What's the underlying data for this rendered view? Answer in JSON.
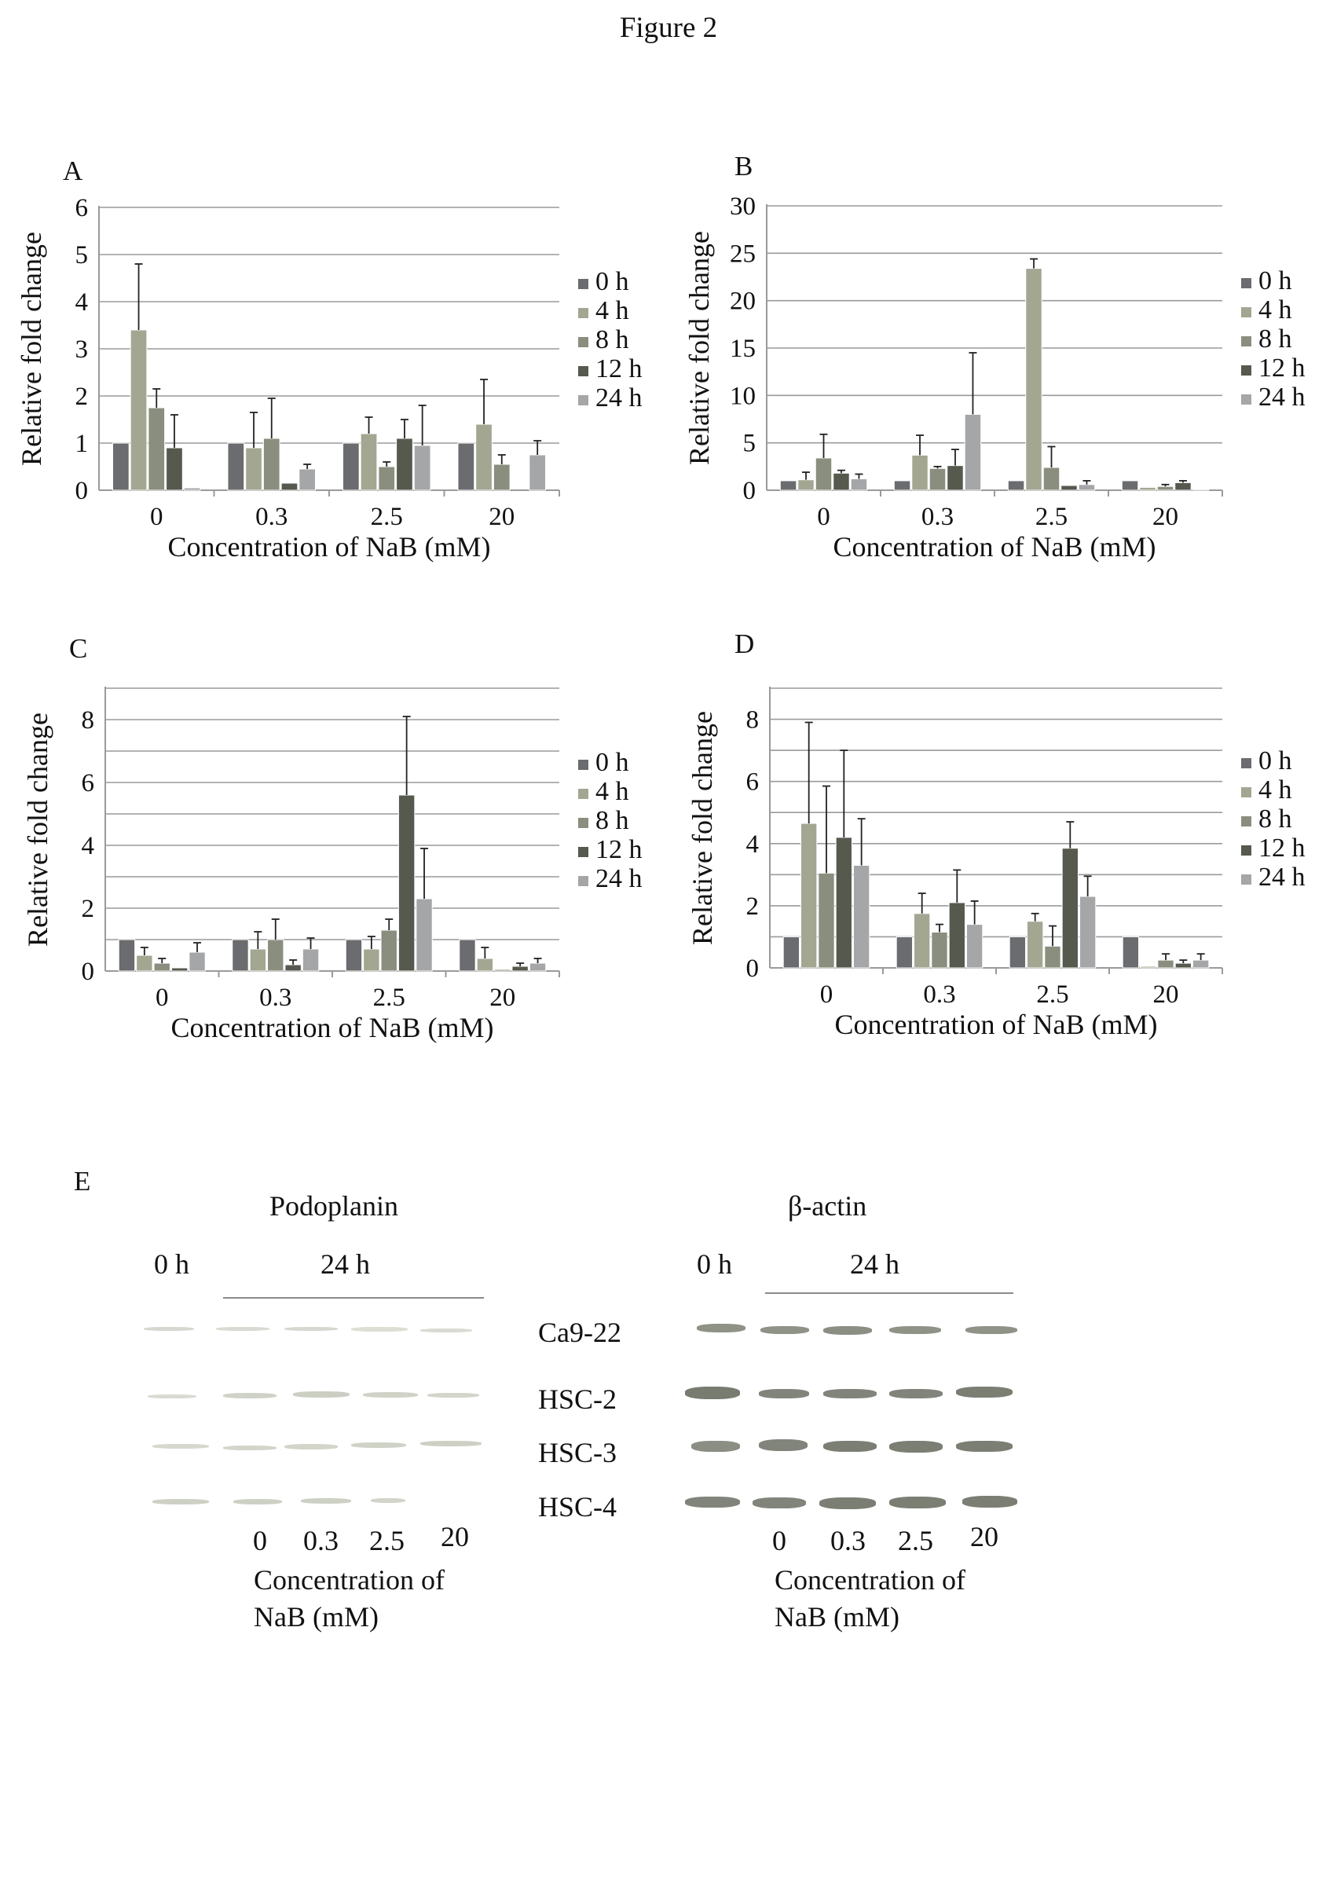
{
  "figure_title": "Figure 2",
  "colors": {
    "0 h": "#6b6c6f",
    "4 h": "#a3a792",
    "8 h": "#8a8e7e",
    "12 h": "#55594e",
    "24 h": "#a5a6a8",
    "grid": "#9a9a9a",
    "axis": "#9a9a9a"
  },
  "chart_data": [
    {
      "panel": "A",
      "type": "bar",
      "categories": [
        "0",
        "0.3",
        "2.5",
        "20"
      ],
      "xlabel": "Concentration of NaB (mM)",
      "ylabel": "Relative fold change",
      "ylim": [
        0,
        6
      ],
      "yticks": [
        "0",
        "1",
        "2",
        "3",
        "4",
        "5",
        "6"
      ],
      "grid": true,
      "legend_position": "right",
      "series": [
        {
          "name": "0 h",
          "values": [
            1.0,
            1.0,
            1.0,
            1.0
          ],
          "errors": [
            0,
            0,
            0,
            0
          ]
        },
        {
          "name": "4 h",
          "values": [
            3.4,
            0.9,
            1.2,
            1.4
          ],
          "errors": [
            1.4,
            0.75,
            0.35,
            0.95
          ]
        },
        {
          "name": "8 h",
          "values": [
            1.75,
            1.1,
            0.5,
            0.55
          ],
          "errors": [
            0.4,
            0.85,
            0.1,
            0.2
          ]
        },
        {
          "name": "12 h",
          "values": [
            0.9,
            0.15,
            1.1,
            0.0
          ],
          "errors": [
            0.7,
            0,
            0.4,
            0
          ]
        },
        {
          "name": "24 h",
          "values": [
            0.05,
            0.45,
            0.95,
            0.75
          ],
          "errors": [
            0,
            0.1,
            0.85,
            0.3
          ]
        }
      ]
    },
    {
      "panel": "B",
      "type": "bar",
      "categories": [
        "0",
        "0.3",
        "2.5",
        "20"
      ],
      "xlabel": "Concentration of NaB (mM)",
      "ylabel": "Relative fold change",
      "ylim": [
        0,
        30
      ],
      "yticks": [
        "0",
        "5",
        "10",
        "15",
        "20",
        "25",
        "30"
      ],
      "grid": true,
      "legend_position": "right",
      "series": [
        {
          "name": "0 h",
          "values": [
            1.0,
            1.0,
            1.0,
            1.0
          ],
          "errors": [
            0,
            0,
            0,
            0
          ]
        },
        {
          "name": "4 h",
          "values": [
            1.1,
            3.7,
            23.4,
            0.3
          ],
          "errors": [
            0.8,
            2.1,
            1.0,
            0
          ]
        },
        {
          "name": "8 h",
          "values": [
            3.4,
            2.3,
            2.4,
            0.4
          ],
          "errors": [
            2.5,
            0.2,
            2.2,
            0.2
          ]
        },
        {
          "name": "12 h",
          "values": [
            1.8,
            2.6,
            0.5,
            0.8
          ],
          "errors": [
            0.3,
            1.7,
            0,
            0.2
          ]
        },
        {
          "name": "24 h",
          "values": [
            1.2,
            8.0,
            0.6,
            0.1
          ],
          "errors": [
            0.5,
            6.5,
            0.4,
            0
          ]
        }
      ]
    },
    {
      "panel": "C",
      "type": "bar",
      "categories": [
        "0",
        "0.3",
        "2.5",
        "20"
      ],
      "xlabel": "Concentration of NaB (mM)",
      "ylabel": "Relative fold change",
      "ylim": [
        0,
        9
      ],
      "yticks": [
        "0",
        "2",
        "4",
        "6",
        "8"
      ],
      "grid": true,
      "legend_position": "right",
      "series": [
        {
          "name": "0 h",
          "values": [
            1.0,
            1.0,
            1.0,
            1.0
          ],
          "errors": [
            0,
            0,
            0,
            0
          ]
        },
        {
          "name": "4 h",
          "values": [
            0.5,
            0.7,
            0.7,
            0.4
          ],
          "errors": [
            0.25,
            0.55,
            0.4,
            0.35
          ]
        },
        {
          "name": "8 h",
          "values": [
            0.25,
            1.0,
            1.3,
            0.05
          ],
          "errors": [
            0.15,
            0.65,
            0.35,
            0
          ]
        },
        {
          "name": "12 h",
          "values": [
            0.1,
            0.2,
            5.6,
            0.15
          ],
          "errors": [
            0,
            0.15,
            2.5,
            0.1
          ]
        },
        {
          "name": "24 h",
          "values": [
            0.6,
            0.7,
            2.3,
            0.25
          ],
          "errors": [
            0.3,
            0.35,
            1.6,
            0.15
          ]
        }
      ]
    },
    {
      "panel": "D",
      "type": "bar",
      "categories": [
        "0",
        "0.3",
        "2.5",
        "20"
      ],
      "xlabel": "Concentration of NaB (mM)",
      "ylabel": "Relative fold change",
      "ylim": [
        0,
        9
      ],
      "yticks": [
        "0",
        "2",
        "4",
        "6",
        "8"
      ],
      "grid": true,
      "legend_position": "right",
      "series": [
        {
          "name": "0 h",
          "values": [
            1.0,
            1.0,
            1.0,
            1.0
          ],
          "errors": [
            0,
            0,
            0,
            0
          ]
        },
        {
          "name": "4 h",
          "values": [
            4.65,
            1.75,
            1.5,
            0.05
          ],
          "errors": [
            3.25,
            0.65,
            0.25,
            0
          ]
        },
        {
          "name": "8 h",
          "values": [
            3.05,
            1.15,
            0.7,
            0.25
          ],
          "errors": [
            2.8,
            0.25,
            0.65,
            0.2
          ]
        },
        {
          "name": "12 h",
          "values": [
            4.2,
            2.1,
            3.85,
            0.15
          ],
          "errors": [
            2.8,
            1.05,
            0.85,
            0.1
          ]
        },
        {
          "name": "24 h",
          "values": [
            3.3,
            1.4,
            2.3,
            0.25
          ],
          "errors": [
            1.5,
            0.75,
            0.65,
            0.2
          ]
        }
      ]
    }
  ],
  "western": {
    "panel": "E",
    "left": {
      "title": "Podoplanin",
      "label_0h": "0 h",
      "label_24h": "24 h",
      "x_ticks": [
        "0",
        "0.3",
        "2.5",
        "20"
      ],
      "xlabel_line1": "Concentration of",
      "xlabel_line2": "NaB (mM)"
    },
    "right": {
      "title": "β-actin",
      "label_0h": "0 h",
      "label_24h": "24 h",
      "x_ticks": [
        "0",
        "0.3",
        "2.5",
        "20"
      ],
      "xlabel_line1": "Concentration of",
      "xlabel_line2": "NaB (mM)"
    },
    "cell_lines": [
      "Ca9-22",
      "HSC-2",
      "HSC-3",
      "HSC-4"
    ]
  }
}
